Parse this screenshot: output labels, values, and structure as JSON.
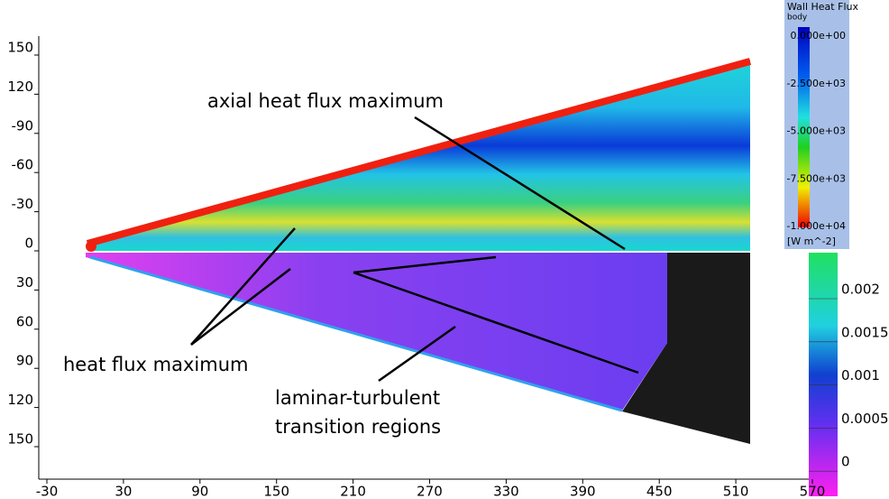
{
  "y_axis": {
    "ticks": [
      "150",
      "120",
      "-90",
      "-60",
      "-30",
      "0",
      "30",
      "60",
      "90",
      "120",
      "150"
    ]
  },
  "x_axis": {
    "ticks": [
      "-30",
      "30",
      "90",
      "150",
      "210",
      "270",
      "330",
      "390",
      "450",
      "510",
      "570"
    ]
  },
  "annotations": [
    "axial heat flux maximum",
    "heat flux maximum",
    "laminar-turbulent",
    "transition regions"
  ],
  "colorbar_top": {
    "title": "Wall Heat Flux",
    "subtitle": "body",
    "labels": [
      "0.000e+00",
      "-2.500e+03",
      "-5.000e+03",
      "-7.500e+03",
      "-1.000e+04"
    ],
    "unit": "[W m^-2]"
  },
  "colorbar_bottom": {
    "labels": [
      "0.002",
      "0.0015",
      "0.001",
      "0.0005",
      "0"
    ]
  }
}
